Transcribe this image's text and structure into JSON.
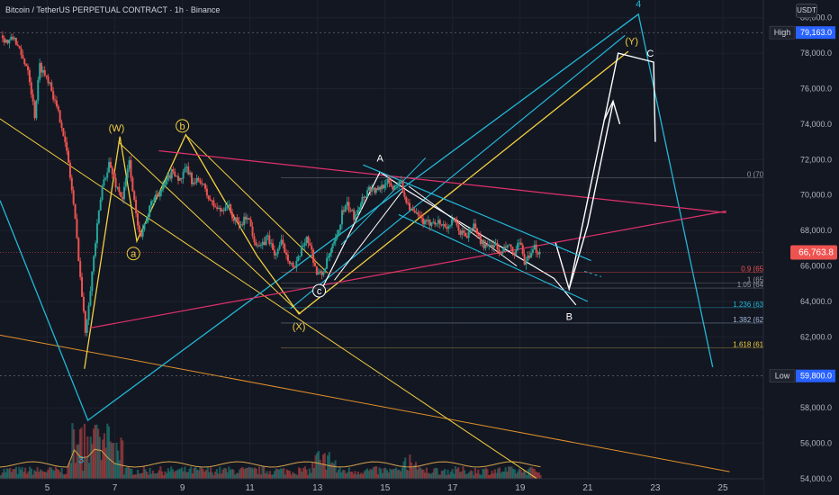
{
  "title": "Bitcoin / TetherUS PERPETUAL CONTRACT · 1h · Binance",
  "currency": "USDT",
  "colors": {
    "bg": "#131722",
    "grid": "#1e222d",
    "axis_text": "#b2b5be",
    "up": "#26a69a",
    "down": "#ef5350",
    "yellow": "#f4d03f",
    "cyan": "#22b8d6",
    "pink": "#e0316b",
    "white": "#ffffff",
    "orange": "#e0902a",
    "price_badge": "#ef5350"
  },
  "chart_data": {
    "type": "candlestick",
    "symbol": "BTCUSDT.P",
    "timeframe": "1h",
    "ylim": [
      54000,
      81000
    ],
    "xlim": [
      3.6,
      26.2
    ],
    "x_ticks": [
      {
        "x": 5,
        "label": "5"
      },
      {
        "x": 7,
        "label": "7"
      },
      {
        "x": 9,
        "label": "9"
      },
      {
        "x": 11,
        "label": "11"
      },
      {
        "x": 13,
        "label": "13"
      },
      {
        "x": 15,
        "label": "15"
      },
      {
        "x": 17,
        "label": "17"
      },
      {
        "x": 19,
        "label": "19"
      },
      {
        "x": 21,
        "label": "21"
      },
      {
        "x": 23,
        "label": "23"
      },
      {
        "x": 25,
        "label": "25"
      }
    ],
    "y_ticks": [
      {
        "v": 80000,
        "label": "80,000.0"
      },
      {
        "v": 78000,
        "label": "78,000.0"
      },
      {
        "v": 76000,
        "label": "76,000.0"
      },
      {
        "v": 74000,
        "label": "74,000.0"
      },
      {
        "v": 72000,
        "label": "72,000.0"
      },
      {
        "v": 70000,
        "label": "70,000.0"
      },
      {
        "v": 68000,
        "label": "68,000.0"
      },
      {
        "v": 66000,
        "label": "66,000.0"
      },
      {
        "v": 64000,
        "label": "64,000.0"
      },
      {
        "v": 62000,
        "label": "62,000.0"
      },
      {
        "v": 58000,
        "label": "58,000.0"
      },
      {
        "v": 56000,
        "label": "56,000.0"
      },
      {
        "v": 54000,
        "label": "54,000.0"
      }
    ],
    "high": {
      "label": "High",
      "value": 79163,
      "text": "79,163.0"
    },
    "low": {
      "label": "Low",
      "value": 59800,
      "text": "59,800.0"
    },
    "last_price": {
      "value": 66763.8,
      "text": "66,763.8"
    },
    "price_path": [
      [
        3.6,
        79000
      ],
      [
        3.8,
        78600
      ],
      [
        4.0,
        78900
      ],
      [
        4.2,
        77800
      ],
      [
        4.4,
        77200
      ],
      [
        4.6,
        74500
      ],
      [
        4.75,
        77300
      ],
      [
        4.9,
        76800
      ],
      [
        5.05,
        76400
      ],
      [
        5.2,
        75200
      ],
      [
        5.4,
        74000
      ],
      [
        5.6,
        71800
      ],
      [
        5.75,
        69500
      ],
      [
        5.9,
        66500
      ],
      [
        6.0,
        64300
      ],
      [
        6.1,
        62300
      ],
      [
        6.25,
        64800
      ],
      [
        6.45,
        68200
      ],
      [
        6.6,
        70500
      ],
      [
        6.8,
        71800
      ],
      [
        7.0,
        70600
      ],
      [
        7.2,
        69800
      ],
      [
        7.4,
        71900
      ],
      [
        7.6,
        68800
      ],
      [
        7.75,
        67800
      ],
      [
        7.9,
        68600
      ],
      [
        8.1,
        69800
      ],
      [
        8.4,
        70400
      ],
      [
        8.7,
        71400
      ],
      [
        8.9,
        70800
      ],
      [
        9.1,
        71500
      ],
      [
        9.3,
        70600
      ],
      [
        9.5,
        70900
      ],
      [
        9.7,
        70000
      ],
      [
        9.9,
        69400
      ],
      [
        10.1,
        69100
      ],
      [
        10.3,
        69500
      ],
      [
        10.5,
        68600
      ],
      [
        10.7,
        68300
      ],
      [
        10.9,
        68900
      ],
      [
        11.1,
        67500
      ],
      [
        11.3,
        67000
      ],
      [
        11.5,
        67700
      ],
      [
        11.7,
        66600
      ],
      [
        11.9,
        67300
      ],
      [
        12.1,
        66500
      ],
      [
        12.3,
        65800
      ],
      [
        12.5,
        66900
      ],
      [
        12.65,
        67700
      ],
      [
        12.8,
        66800
      ],
      [
        12.95,
        65600
      ],
      [
        13.1,
        65500
      ],
      [
        13.3,
        66500
      ],
      [
        13.55,
        67600
      ],
      [
        13.7,
        69000
      ],
      [
        13.85,
        69400
      ],
      [
        14.05,
        68800
      ],
      [
        14.3,
        69800
      ],
      [
        14.5,
        70400
      ],
      [
        14.75,
        70200
      ],
      [
        15.0,
        70800
      ],
      [
        15.2,
        70400
      ],
      [
        15.4,
        70900
      ],
      [
        15.6,
        69700
      ],
      [
        15.8,
        69000
      ],
      [
        16.0,
        68700
      ],
      [
        16.2,
        68300
      ],
      [
        16.4,
        68600
      ],
      [
        16.6,
        68400
      ],
      [
        16.8,
        68200
      ],
      [
        17.0,
        68500
      ],
      [
        17.2,
        67900
      ],
      [
        17.4,
        67700
      ],
      [
        17.6,
        68300
      ],
      [
        17.8,
        67400
      ],
      [
        18.0,
        67000
      ],
      [
        18.2,
        67300
      ],
      [
        18.4,
        66600
      ],
      [
        18.6,
        67200
      ],
      [
        18.8,
        66600
      ],
      [
        18.95,
        67300
      ],
      [
        19.1,
        66300
      ],
      [
        19.25,
        66400
      ],
      [
        19.4,
        67000
      ],
      [
        19.55,
        66763.8
      ]
    ],
    "annotations": {
      "waves": [
        {
          "text": "(W)",
          "x": 7.05,
          "y": 73600,
          "color": "yellow"
        },
        {
          "text": "(X)",
          "x": 12.45,
          "y": 62400,
          "color": "yellow"
        },
        {
          "text": "(Y)",
          "x": 22.3,
          "y": 78500,
          "color": "yellow"
        },
        {
          "text": "a",
          "x": 7.55,
          "y": 66500,
          "color": "yellow",
          "circled": true
        },
        {
          "text": "b",
          "x": 9.0,
          "y": 73700,
          "color": "yellow",
          "circled": true
        },
        {
          "text": "c",
          "x": 13.05,
          "y": 64400,
          "color": "white",
          "circled": true
        },
        {
          "text": "A",
          "x": 14.85,
          "y": 71900,
          "color": "white"
        },
        {
          "text": "B",
          "x": 20.45,
          "y": 62950,
          "color": "white"
        },
        {
          "text": "C",
          "x": 22.85,
          "y": 77800,
          "color": "white"
        },
        {
          "text": "4",
          "x": 22.5,
          "y": 80600,
          "color": "cyan"
        },
        {
          "text": "3",
          "x": 6.0,
          "y": 54900,
          "color": "cyan"
        }
      ],
      "fib_levels": [
        {
          "v": 70983.5,
          "label": "0 (70,983.5)",
          "color": "#9598a1"
        },
        {
          "v": 65644.0,
          "label": "0.9 (65,644.0)",
          "color": "#ef5350"
        },
        {
          "v": 65050.7,
          "label": "1 (65,050.7)",
          "color": "#9598a1"
        },
        {
          "v": 64754.1,
          "label": "1.05 (64,754.1)",
          "color": "#9598a1"
        },
        {
          "v": 63650.6,
          "label": "1.236 (63,650.6)",
          "color": "#22b8d6"
        },
        {
          "v": 62784.5,
          "label": "1.382 (62,784.5)",
          "color": "#9fb7d6"
        },
        {
          "v": 61384.3,
          "label": "1.618 (61,384.3)",
          "color": "#f4d03f"
        }
      ]
    }
  }
}
